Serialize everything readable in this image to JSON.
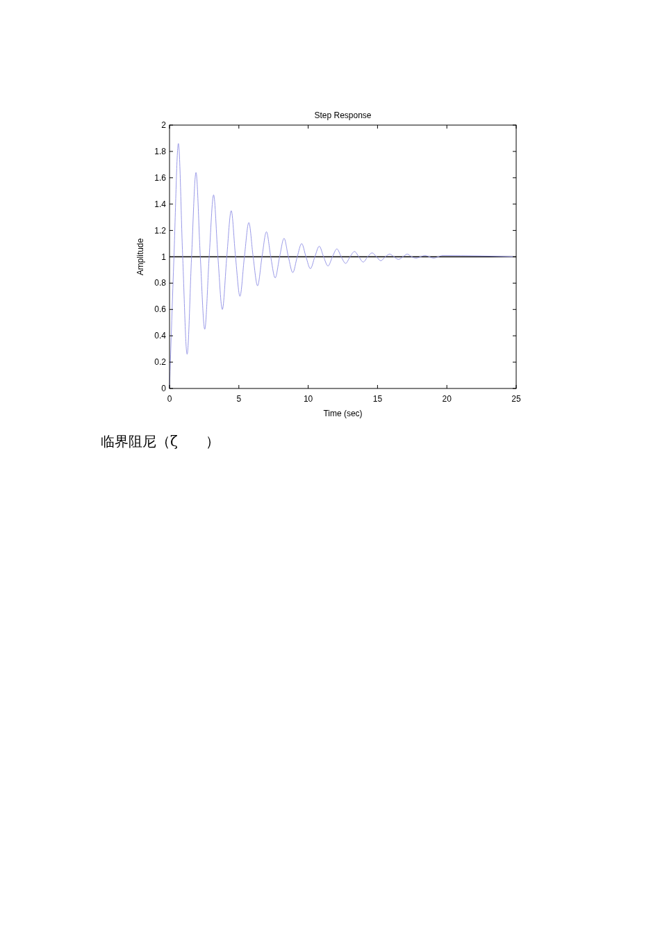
{
  "chart_data": {
    "type": "line",
    "title": "Step Response",
    "xlabel": "Time (sec)",
    "ylabel": "Amplitude",
    "x": [
      0,
      0.32,
      0.64,
      0.95,
      1.27,
      1.59,
      1.91,
      2.22,
      2.54,
      2.86,
      3.18,
      3.49,
      3.81,
      4.13,
      4.45,
      4.76,
      5.08,
      5.4,
      5.72,
      6.03,
      6.35,
      6.67,
      6.99,
      7.3,
      7.62,
      7.94,
      8.26,
      8.57,
      8.89,
      9.21,
      9.53,
      9.84,
      10.16,
      10.48,
      10.8,
      11.11,
      11.43,
      11.75,
      12.07,
      12.38,
      12.7,
      13.02,
      13.34,
      13.65,
      13.97,
      14.29,
      14.61,
      14.92,
      15.24,
      15.56,
      15.88,
      16.19,
      16.51,
      16.83,
      17.15,
      17.46,
      17.78,
      18.1,
      18.42,
      18.73,
      19.05,
      19.37,
      19.69,
      25
    ],
    "series": [
      {
        "color": "#9a9ae8",
        "values": [
          0,
          1,
          1.86,
          1,
          0.26,
          1,
          1.64,
          1,
          0.45,
          1,
          1.47,
          1,
          0.6,
          1,
          1.35,
          1,
          0.7,
          1,
          1.26,
          1,
          0.78,
          1,
          1.19,
          1,
          0.84,
          1,
          1.14,
          1,
          0.88,
          1,
          1.1,
          1,
          0.91,
          1,
          1.08,
          1,
          0.93,
          1,
          1.06,
          1,
          0.95,
          1,
          1.04,
          1,
          0.96,
          1,
          1.03,
          1,
          0.97,
          1,
          1.02,
          1,
          0.98,
          1,
          1.02,
          1,
          0.99,
          1,
          1.01,
          1,
          0.99,
          1,
          1.01,
          1
        ]
      }
    ],
    "xlim": [
      0,
      25
    ],
    "xticks": [
      0,
      5,
      10,
      15,
      20,
      25
    ],
    "ylim": [
      0,
      2
    ],
    "yticks": [
      0,
      0.2,
      0.4,
      0.6,
      0.8,
      1,
      1.2,
      1.4,
      1.6,
      1.8,
      2
    ],
    "ref_lines": [
      {
        "axis": "y",
        "value": 1,
        "color": "#000000"
      }
    ],
    "grid": false,
    "marker": "none",
    "line_style": "solid",
    "annotations": [
      "临界阻尼（ζ　　）"
    ]
  }
}
